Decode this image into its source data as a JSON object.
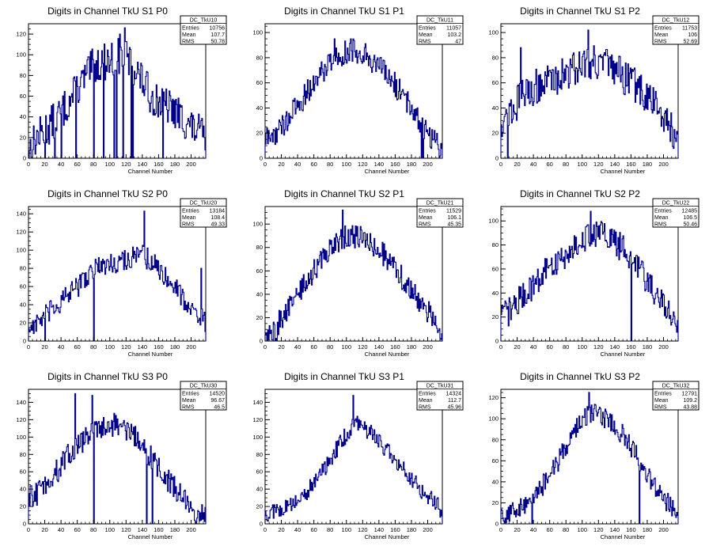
{
  "page": {
    "background": "#ffffff",
    "line_color": "#00008b"
  },
  "chart_data": [
    {
      "type": "line",
      "title": "Digits in Channel TkU S1 P0",
      "xlabel": "Channel Number",
      "ylabel": "",
      "xlim": [
        0,
        218
      ],
      "ylim": [
        0,
        130
      ],
      "xticks": [
        0,
        20,
        40,
        60,
        80,
        100,
        120,
        140,
        160,
        180,
        200
      ],
      "yticks": [
        0,
        20,
        40,
        60,
        80,
        100,
        120
      ],
      "stats": {
        "name": "DC_TkU10",
        "rows": [
          {
            "label": "Entries",
            "value": "10756"
          },
          {
            "label": "Mean",
            "value": "107.7"
          },
          {
            "label": "RMS",
            "value": "50.78"
          }
        ]
      },
      "profile_x": [
        0,
        10,
        30,
        50,
        80,
        100,
        115,
        130,
        150,
        180,
        200,
        218
      ],
      "profile_y": [
        8,
        20,
        35,
        55,
        90,
        95,
        100,
        88,
        60,
        45,
        30,
        20
      ],
      "noise": 18,
      "dips": [
        [
          20,
          0
        ],
        [
          32,
          0
        ],
        [
          40,
          0
        ],
        [
          58,
          0
        ],
        [
          80,
          0
        ],
        [
          92,
          0
        ],
        [
          105,
          0
        ],
        [
          108,
          0
        ],
        [
          112,
          0
        ],
        [
          116,
          0
        ],
        [
          118,
          0
        ],
        [
          126,
          0
        ],
        [
          128,
          0
        ],
        [
          165,
          0
        ]
      ],
      "spikes": [
        [
          118,
          126
        ],
        [
          112,
          120
        ],
        [
          90,
          104
        ]
      ]
    },
    {
      "type": "line",
      "title": "Digits in Channel TkU S1 P1",
      "xlabel": "Channel Number",
      "ylabel": "",
      "xlim": [
        0,
        218
      ],
      "ylim": [
        0,
        107
      ],
      "xticks": [
        0,
        20,
        40,
        60,
        80,
        100,
        120,
        140,
        160,
        180,
        200
      ],
      "yticks": [
        0,
        20,
        40,
        60,
        80,
        100
      ],
      "stats": {
        "name": "DC_TkU11",
        "rows": [
          {
            "label": "Entries",
            "value": "11057"
          },
          {
            "label": "Mean",
            "value": "103.2"
          },
          {
            "label": "RMS",
            "value": "47"
          }
        ]
      },
      "profile_x": [
        0,
        10,
        20,
        40,
        60,
        80,
        100,
        120,
        140,
        160,
        180,
        200,
        218
      ],
      "profile_y": [
        15,
        18,
        25,
        42,
        60,
        78,
        85,
        85,
        72,
        58,
        40,
        20,
        8
      ],
      "noise": 10,
      "dips": [
        [
          192,
          0
        ],
        [
          194,
          0
        ],
        [
          214,
          0
        ]
      ],
      "spikes": [
        [
          85,
          95
        ],
        [
          105,
          95
        ]
      ]
    },
    {
      "type": "line",
      "title": "Digits in Channel TkU S1 P2",
      "xlabel": "Channel Number",
      "ylabel": "",
      "xlim": [
        0,
        218
      ],
      "ylim": [
        0,
        107
      ],
      "xticks": [
        0,
        20,
        40,
        60,
        80,
        100,
        120,
        140,
        160,
        180,
        200
      ],
      "yticks": [
        0,
        20,
        40,
        60,
        80,
        100
      ],
      "stats": {
        "name": "DC_TkU12",
        "rows": [
          {
            "label": "Entries",
            "value": "11753"
          },
          {
            "label": "Mean",
            "value": "106"
          },
          {
            "label": "RMS",
            "value": "52.69"
          }
        ]
      },
      "profile_x": [
        0,
        10,
        25,
        45,
        70,
        100,
        115,
        140,
        170,
        190,
        210,
        218
      ],
      "profile_y": [
        30,
        35,
        50,
        58,
        65,
        75,
        78,
        70,
        55,
        42,
        25,
        10
      ],
      "noise": 14,
      "dips": [
        [
          8,
          0
        ]
      ],
      "spikes": [
        [
          24,
          88
        ],
        [
          107,
          102
        ]
      ]
    },
    {
      "type": "line",
      "title": "Digits in Channel TkU S2 P0",
      "xlabel": "Channel Number",
      "ylabel": "",
      "xlim": [
        0,
        218
      ],
      "ylim": [
        0,
        148
      ],
      "xticks": [
        0,
        20,
        40,
        60,
        80,
        100,
        120,
        140,
        160,
        180,
        200
      ],
      "yticks": [
        0,
        20,
        40,
        60,
        80,
        100,
        120,
        140
      ],
      "stats": {
        "name": "DC_TkU20",
        "rows": [
          {
            "label": "Entries",
            "value": "13184"
          },
          {
            "label": "Mean",
            "value": "108.4"
          },
          {
            "label": "RMS",
            "value": "49.33"
          }
        ]
      },
      "profile_x": [
        0,
        10,
        30,
        60,
        80,
        100,
        120,
        140,
        160,
        180,
        200,
        218
      ],
      "profile_y": [
        15,
        20,
        35,
        60,
        80,
        85,
        90,
        95,
        80,
        60,
        35,
        20
      ],
      "noise": 12,
      "dips": [
        [
          20,
          0
        ],
        [
          80,
          0
        ]
      ],
      "spikes": [
        [
          142,
          143
        ],
        [
          212,
          80
        ]
      ]
    },
    {
      "type": "line",
      "title": "Digits in Channel TkU S2 P1",
      "xlabel": "Channel Number",
      "ylabel": "",
      "xlim": [
        0,
        218
      ],
      "ylim": [
        0,
        115
      ],
      "xticks": [
        0,
        20,
        40,
        60,
        80,
        100,
        120,
        140,
        160,
        180,
        200
      ],
      "yticks": [
        0,
        20,
        40,
        60,
        80,
        100
      ],
      "stats": {
        "name": "DC_TkU21",
        "rows": [
          {
            "label": "Entries",
            "value": "11529"
          },
          {
            "label": "Mean",
            "value": "106.1"
          },
          {
            "label": "RMS",
            "value": "45.35"
          }
        ]
      },
      "profile_x": [
        0,
        10,
        20,
        40,
        60,
        80,
        100,
        120,
        140,
        160,
        180,
        200,
        218
      ],
      "profile_y": [
        5,
        8,
        20,
        40,
        60,
        80,
        90,
        88,
        78,
        62,
        42,
        25,
        8
      ],
      "noise": 10,
      "dips": [
        [
          2,
          0
        ],
        [
          12,
          0
        ],
        [
          14,
          0
        ]
      ],
      "spikes": [
        [
          95,
          112
        ]
      ]
    },
    {
      "type": "line",
      "title": "Digits in Channel TkU S2 P2",
      "xlabel": "Channel Number",
      "ylabel": "",
      "xlim": [
        0,
        218
      ],
      "ylim": [
        0,
        112
      ],
      "xticks": [
        0,
        20,
        40,
        60,
        80,
        100,
        120,
        140,
        160,
        180,
        200
      ],
      "yticks": [
        0,
        20,
        40,
        60,
        80,
        100
      ],
      "stats": {
        "name": "DC_TkU22",
        "rows": [
          {
            "label": "Entries",
            "value": "12485"
          },
          {
            "label": "Mean",
            "value": "106.5"
          },
          {
            "label": "RMS",
            "value": "50.46"
          }
        ]
      },
      "profile_x": [
        0,
        10,
        30,
        50,
        80,
        100,
        120,
        140,
        160,
        180,
        200,
        218
      ],
      "profile_y": [
        20,
        25,
        40,
        55,
        72,
        85,
        90,
        82,
        70,
        50,
        30,
        12
      ],
      "noise": 12,
      "dips": [
        [
          160,
          0
        ]
      ],
      "spikes": [
        [
          110,
          108
        ]
      ]
    },
    {
      "type": "line",
      "title": "Digits in Channel TkU S3 P0",
      "xlabel": "Channel Number",
      "ylabel": "",
      "xlim": [
        0,
        218
      ],
      "ylim": [
        0,
        155
      ],
      "xticks": [
        0,
        20,
        40,
        60,
        80,
        100,
        120,
        140,
        160,
        180,
        200
      ],
      "yticks": [
        0,
        20,
        40,
        60,
        80,
        100,
        120,
        140
      ],
      "stats": {
        "name": "DC_TkU30",
        "rows": [
          {
            "label": "Entries",
            "value": "14520"
          },
          {
            "label": "Mean",
            "value": "96.67"
          },
          {
            "label": "RMS",
            "value": "46.5"
          }
        ]
      },
      "profile_x": [
        0,
        10,
        30,
        50,
        70,
        90,
        110,
        130,
        150,
        170,
        190,
        210,
        218
      ],
      "profile_y": [
        30,
        35,
        55,
        80,
        100,
        112,
        115,
        100,
        78,
        50,
        30,
        10,
        5
      ],
      "noise": 14,
      "dips": [
        [
          80,
          0
        ],
        [
          145,
          0
        ],
        [
          152,
          0
        ]
      ],
      "spikes": [
        [
          57,
          150
        ],
        [
          78,
          148
        ]
      ]
    },
    {
      "type": "line",
      "title": "Digits in Channel TkU S3 P1",
      "xlabel": "Channel Number",
      "ylabel": "",
      "xlim": [
        0,
        218
      ],
      "ylim": [
        0,
        155
      ],
      "xticks": [
        0,
        20,
        40,
        60,
        80,
        100,
        120,
        140,
        160,
        180,
        200
      ],
      "yticks": [
        0,
        20,
        40,
        60,
        80,
        100,
        120,
        140
      ],
      "stats": {
        "name": "DC_TkU31",
        "rows": [
          {
            "label": "Entries",
            "value": "14324"
          },
          {
            "label": "Mean",
            "value": "112.7"
          },
          {
            "label": "RMS",
            "value": "45.96"
          }
        ]
      },
      "profile_x": [
        0,
        10,
        30,
        50,
        70,
        90,
        110,
        130,
        150,
        170,
        190,
        210,
        218
      ],
      "profile_y": [
        10,
        15,
        20,
        35,
        60,
        90,
        118,
        105,
        85,
        62,
        40,
        25,
        12
      ],
      "noise": 10,
      "dips": [],
      "spikes": [
        [
          108,
          148
        ]
      ]
    },
    {
      "type": "line",
      "title": "Digits in Channel TkU S3 P2",
      "xlabel": "Channel Number",
      "ylabel": "",
      "xlim": [
        0,
        218
      ],
      "ylim": [
        0,
        128
      ],
      "xticks": [
        0,
        20,
        40,
        60,
        80,
        100,
        120,
        140,
        160,
        180,
        200
      ],
      "yticks": [
        0,
        20,
        40,
        60,
        80,
        100,
        120
      ],
      "stats": {
        "name": "DC_TkU32",
        "rows": [
          {
            "label": "Entries",
            "value": "12791"
          },
          {
            "label": "Mean",
            "value": "109.2"
          },
          {
            "label": "RMS",
            "value": "43.88"
          }
        ]
      },
      "profile_x": [
        0,
        10,
        30,
        50,
        70,
        90,
        110,
        130,
        150,
        170,
        190,
        210,
        218
      ],
      "profile_y": [
        8,
        10,
        18,
        35,
        60,
        90,
        105,
        100,
        85,
        60,
        35,
        15,
        5
      ],
      "noise": 10,
      "dips": [
        [
          38,
          0
        ],
        [
          170,
          0
        ]
      ],
      "spikes": [
        [
          108,
          125
        ]
      ]
    }
  ]
}
